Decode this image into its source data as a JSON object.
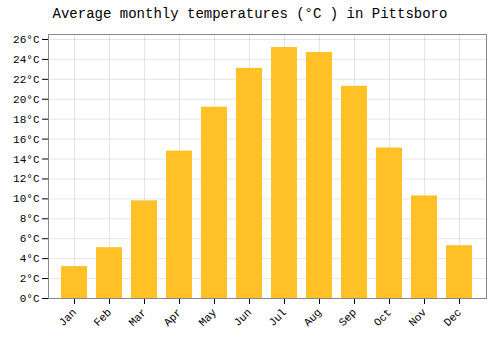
{
  "chart_data": {
    "type": "bar",
    "title": "Average monthly temperatures (°C ) in Pittsboro",
    "categories": [
      "Jan",
      "Feb",
      "Mar",
      "Apr",
      "May",
      "Jun",
      "Jul",
      "Aug",
      "Sep",
      "Oct",
      "Nov",
      "Dec"
    ],
    "values": [
      3.2,
      5.1,
      9.8,
      14.8,
      19.2,
      23.1,
      25.2,
      24.7,
      21.3,
      15.1,
      10.3,
      5.3
    ],
    "color": "#FFC125",
    "ylim": [
      0,
      26.5
    ],
    "yticks": [
      {
        "value": 0,
        "label": "0°C"
      },
      {
        "value": 2,
        "label": "2°C"
      },
      {
        "value": 4,
        "label": "4°C"
      },
      {
        "value": 6,
        "label": "6°C"
      },
      {
        "value": 8,
        "label": "8°C"
      },
      {
        "value": 10,
        "label": "10°C"
      },
      {
        "value": 12,
        "label": "12°C"
      },
      {
        "value": 14,
        "label": "14°C"
      },
      {
        "value": 16,
        "label": "16°C"
      },
      {
        "value": 18,
        "label": "18°C"
      },
      {
        "value": 20,
        "label": "20°C"
      },
      {
        "value": 22,
        "label": "22°C"
      },
      {
        "value": 24,
        "label": "24°C"
      },
      {
        "value": 26,
        "label": "26°C"
      }
    ],
    "grid": true
  }
}
